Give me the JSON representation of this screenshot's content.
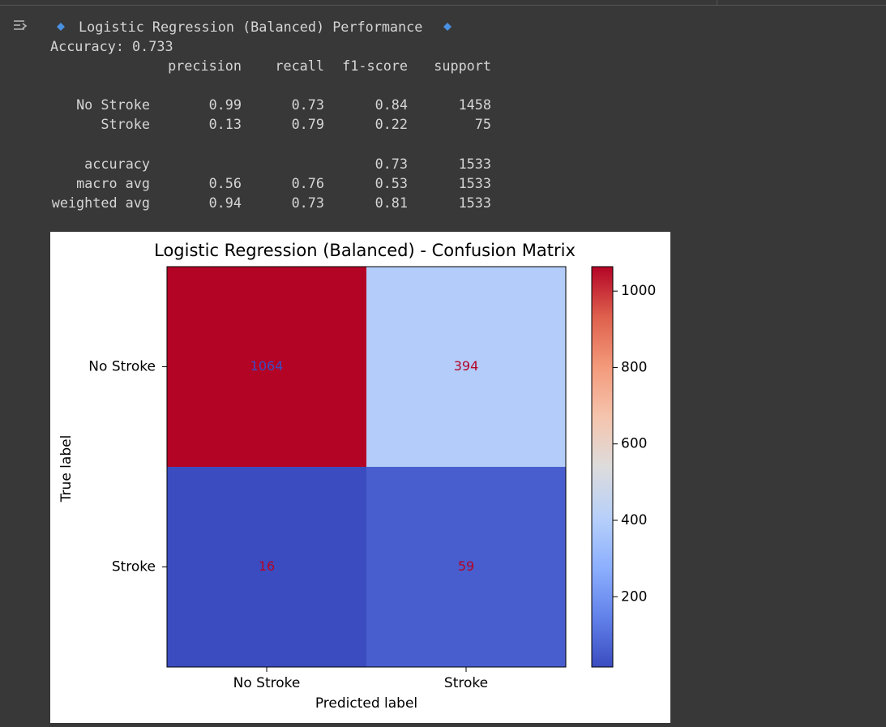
{
  "output": {
    "heading": "Logistic Regression (Balanced) Performance",
    "accuracy_line": "Accuracy: 0.733",
    "report": {
      "columns": [
        "precision",
        "recall",
        "f1-score",
        "support"
      ],
      "groups": [
        [
          [
            "No Stroke",
            "0.99",
            "0.73",
            "0.84",
            "1458"
          ],
          [
            "Stroke",
            "0.13",
            "0.79",
            "0.22",
            "75"
          ]
        ],
        [
          [
            "accuracy",
            null,
            null,
            "0.73",
            "1533"
          ],
          [
            "macro avg",
            "0.56",
            "0.76",
            "0.53",
            "1533"
          ],
          [
            "weighted avg",
            "0.94",
            "0.73",
            "0.81",
            "1533"
          ]
        ]
      ]
    }
  },
  "chart_data": {
    "type": "heatmap",
    "title": "Logistic Regression (Balanced) - Confusion Matrix",
    "x_label": "Predicted label",
    "y_label": "True label",
    "x_categories": [
      "No Stroke",
      "Stroke"
    ],
    "y_categories": [
      "No Stroke",
      "Stroke"
    ],
    "values": [
      [
        1064,
        394
      ],
      [
        16,
        59
      ]
    ],
    "colormap": "coolwarm",
    "colorbar_lim": [
      16,
      1064
    ],
    "colorbar_ticks": [
      200,
      400,
      600,
      800,
      1000
    ]
  }
}
